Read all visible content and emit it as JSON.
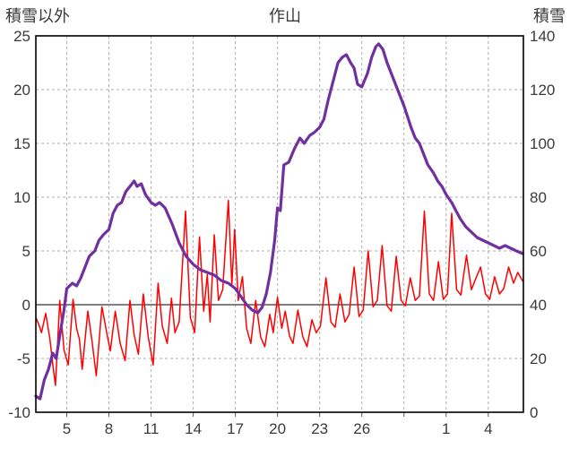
{
  "page": {
    "background": "#FFFFFF"
  },
  "chart_data": {
    "type": "line",
    "title": "作山",
    "grid": {
      "color": "#ADADAD",
      "dash": "3,3"
    },
    "border_color": "#000000",
    "left_axis": {
      "label": "積雪以外",
      "min": -10,
      "max": 25,
      "tick_step": 5,
      "ticks": [
        -10,
        -5,
        0,
        5,
        10,
        15,
        20,
        25
      ]
    },
    "right_axis": {
      "label": "積雪",
      "min": 0,
      "max": 140,
      "tick_step": 20,
      "ticks": [
        0,
        20,
        40,
        60,
        80,
        100,
        120,
        140
      ]
    },
    "x_axis": {
      "min": 2.8,
      "max": 37.5,
      "ticks": [
        {
          "day": 5,
          "label": "5"
        },
        {
          "day": 8,
          "label": "8"
        },
        {
          "day": 11,
          "label": "11"
        },
        {
          "day": 14,
          "label": "14"
        },
        {
          "day": 17,
          "label": "17"
        },
        {
          "day": 20,
          "label": "20"
        },
        {
          "day": 23,
          "label": "23"
        },
        {
          "day": 26,
          "label": "26"
        },
        {
          "day": 29,
          "label": ""
        },
        {
          "day": 32,
          "label": "1"
        },
        {
          "day": 35,
          "label": "4"
        }
      ]
    },
    "zero_line": {
      "axis": "left",
      "value": 0,
      "color": "#808080",
      "width": 2
    },
    "series": [
      {
        "id": "non-snow-series",
        "name": "積雪以外",
        "axis": "left",
        "color": "#FF0000",
        "width": 1.5,
        "points": [
          [
            2.8,
            -1.2
          ],
          [
            3.0,
            -1.8
          ],
          [
            3.2,
            -2.6
          ],
          [
            3.5,
            -0.8
          ],
          [
            3.8,
            -3.2
          ],
          [
            4.0,
            -5.5
          ],
          [
            4.2,
            -7.5
          ],
          [
            4.5,
            0.4
          ],
          [
            4.8,
            -4.2
          ],
          [
            5.1,
            -5.6
          ],
          [
            5.45,
            0.5
          ],
          [
            5.7,
            -2.2
          ],
          [
            5.9,
            -3.2
          ],
          [
            6.1,
            -6.0
          ],
          [
            6.5,
            -0.6
          ],
          [
            6.8,
            -3.4
          ],
          [
            7.1,
            -6.6
          ],
          [
            7.5,
            -0.2
          ],
          [
            7.9,
            -3.0
          ],
          [
            8.1,
            -4.3
          ],
          [
            8.45,
            -0.6
          ],
          [
            8.8,
            -3.6
          ],
          [
            9.15,
            -5.2
          ],
          [
            9.5,
            0.4
          ],
          [
            9.8,
            -2.8
          ],
          [
            10.1,
            -4.6
          ],
          [
            10.45,
            1.0
          ],
          [
            10.8,
            -3.0
          ],
          [
            11.15,
            -5.6
          ],
          [
            11.5,
            2.0
          ],
          [
            11.8,
            -2.0
          ],
          [
            12.15,
            -3.6
          ],
          [
            12.45,
            0.6
          ],
          [
            12.7,
            -2.6
          ],
          [
            13.0,
            -1.6
          ],
          [
            13.45,
            8.7
          ],
          [
            13.8,
            -1.2
          ],
          [
            14.1,
            -2.6
          ],
          [
            14.45,
            6.3
          ],
          [
            14.75,
            -0.6
          ],
          [
            15.0,
            2.8
          ],
          [
            15.2,
            -1.6
          ],
          [
            15.5,
            6.5
          ],
          [
            15.8,
            0.4
          ],
          [
            16.1,
            1.4
          ],
          [
            16.5,
            9.7
          ],
          [
            16.75,
            1.8
          ],
          [
            16.95,
            7.0
          ],
          [
            17.2,
            0.4
          ],
          [
            17.5,
            2.6
          ],
          [
            17.8,
            -2.2
          ],
          [
            18.1,
            -3.6
          ],
          [
            18.45,
            0.4
          ],
          [
            18.8,
            -3.0
          ],
          [
            19.1,
            -3.9
          ],
          [
            19.45,
            -0.9
          ],
          [
            19.7,
            -2.6
          ],
          [
            20.0,
            0.7
          ],
          [
            20.3,
            -2.2
          ],
          [
            20.55,
            -0.6
          ],
          [
            20.85,
            -2.9
          ],
          [
            21.1,
            -3.6
          ],
          [
            21.45,
            -0.5
          ],
          [
            21.8,
            -3.0
          ],
          [
            22.1,
            -3.9
          ],
          [
            22.45,
            -1.4
          ],
          [
            22.75,
            -2.6
          ],
          [
            23.05,
            -2.0
          ],
          [
            23.45,
            2.5
          ],
          [
            23.8,
            -1.6
          ],
          [
            24.1,
            -2.1
          ],
          [
            24.45,
            1.0
          ],
          [
            24.8,
            -1.6
          ],
          [
            25.1,
            -0.9
          ],
          [
            25.45,
            3.5
          ],
          [
            25.8,
            -1.1
          ],
          [
            26.1,
            -0.5
          ],
          [
            26.45,
            5.0
          ],
          [
            26.8,
            -0.2
          ],
          [
            27.1,
            0.4
          ],
          [
            27.45,
            5.5
          ],
          [
            27.8,
            -0.1
          ],
          [
            28.1,
            -0.6
          ],
          [
            28.45,
            4.5
          ],
          [
            28.8,
            0.4
          ],
          [
            29.1,
            -0.1
          ],
          [
            29.45,
            2.5
          ],
          [
            29.8,
            0.4
          ],
          [
            30.1,
            0.8
          ],
          [
            30.45,
            8.7
          ],
          [
            30.8,
            1.0
          ],
          [
            31.1,
            0.4
          ],
          [
            31.45,
            4.0
          ],
          [
            31.8,
            0.5
          ],
          [
            32.1,
            1.0
          ],
          [
            32.4,
            8.5
          ],
          [
            32.75,
            1.4
          ],
          [
            33.05,
            0.9
          ],
          [
            33.45,
            4.6
          ],
          [
            33.8,
            1.4
          ],
          [
            34.1,
            2.4
          ],
          [
            34.45,
            3.5
          ],
          [
            34.8,
            1.0
          ],
          [
            35.1,
            0.5
          ],
          [
            35.45,
            2.6
          ],
          [
            35.8,
            1.0
          ],
          [
            36.1,
            1.5
          ],
          [
            36.45,
            3.5
          ],
          [
            36.8,
            2.0
          ],
          [
            37.1,
            3.0
          ],
          [
            37.45,
            2.2
          ]
        ]
      },
      {
        "id": "snow-series",
        "name": "積雪",
        "axis": "right",
        "color": "#7030A0",
        "width": 3.2,
        "points": [
          [
            2.8,
            6
          ],
          [
            3.1,
            5
          ],
          [
            3.4,
            12
          ],
          [
            3.7,
            16
          ],
          [
            4.0,
            22
          ],
          [
            4.25,
            20
          ],
          [
            4.55,
            30
          ],
          [
            4.8,
            38
          ],
          [
            5.0,
            46
          ],
          [
            5.4,
            48
          ],
          [
            5.7,
            47
          ],
          [
            6.0,
            50
          ],
          [
            6.3,
            54
          ],
          [
            6.6,
            58
          ],
          [
            7.0,
            60
          ],
          [
            7.3,
            64
          ],
          [
            7.6,
            66
          ],
          [
            8.0,
            68
          ],
          [
            8.3,
            74
          ],
          [
            8.6,
            77
          ],
          [
            8.9,
            78
          ],
          [
            9.2,
            82
          ],
          [
            9.5,
            84
          ],
          [
            9.8,
            86
          ],
          [
            10.0,
            84
          ],
          [
            10.3,
            85
          ],
          [
            10.6,
            81
          ],
          [
            11.0,
            78
          ],
          [
            11.3,
            77
          ],
          [
            11.6,
            78
          ],
          [
            12.0,
            76
          ],
          [
            12.5,
            70
          ],
          [
            13.0,
            63
          ],
          [
            13.5,
            58
          ],
          [
            14.0,
            55
          ],
          [
            14.5,
            53
          ],
          [
            15.0,
            52
          ],
          [
            15.5,
            51
          ],
          [
            16.0,
            49
          ],
          [
            16.5,
            48
          ],
          [
            17.0,
            46
          ],
          [
            17.4,
            43
          ],
          [
            17.8,
            40
          ],
          [
            18.2,
            38
          ],
          [
            18.6,
            37
          ],
          [
            18.9,
            39
          ],
          [
            19.2,
            44
          ],
          [
            19.5,
            52
          ],
          [
            19.8,
            64
          ],
          [
            20.0,
            76
          ],
          [
            20.2,
            75
          ],
          [
            20.45,
            92
          ],
          [
            20.8,
            93
          ],
          [
            21.2,
            98
          ],
          [
            21.6,
            102
          ],
          [
            21.9,
            100
          ],
          [
            22.3,
            103
          ],
          [
            22.6,
            104
          ],
          [
            23.0,
            106
          ],
          [
            23.3,
            109
          ],
          [
            23.6,
            116
          ],
          [
            24.0,
            124
          ],
          [
            24.3,
            130
          ],
          [
            24.6,
            132
          ],
          [
            24.9,
            133
          ],
          [
            25.2,
            130
          ],
          [
            25.45,
            128
          ],
          [
            25.7,
            122
          ],
          [
            26.0,
            121
          ],
          [
            26.4,
            126
          ],
          [
            26.7,
            132
          ],
          [
            27.0,
            136
          ],
          [
            27.2,
            137
          ],
          [
            27.5,
            135
          ],
          [
            27.8,
            130
          ],
          [
            28.1,
            126
          ],
          [
            28.4,
            122
          ],
          [
            28.7,
            118
          ],
          [
            29.0,
            114
          ],
          [
            29.25,
            110
          ],
          [
            29.5,
            106
          ],
          [
            29.8,
            102
          ],
          [
            30.1,
            100
          ],
          [
            30.4,
            96
          ],
          [
            30.7,
            92
          ],
          [
            31.1,
            89
          ],
          [
            31.4,
            86
          ],
          [
            31.7,
            84
          ],
          [
            32.0,
            81
          ],
          [
            32.4,
            78
          ],
          [
            32.7,
            75
          ],
          [
            33.0,
            72
          ],
          [
            33.4,
            69
          ],
          [
            33.8,
            67
          ],
          [
            34.2,
            65
          ],
          [
            34.6,
            64
          ],
          [
            35.0,
            63
          ],
          [
            35.4,
            62
          ],
          [
            35.8,
            61
          ],
          [
            36.2,
            62
          ],
          [
            36.6,
            61
          ],
          [
            37.0,
            60
          ],
          [
            37.45,
            59
          ]
        ]
      }
    ]
  }
}
